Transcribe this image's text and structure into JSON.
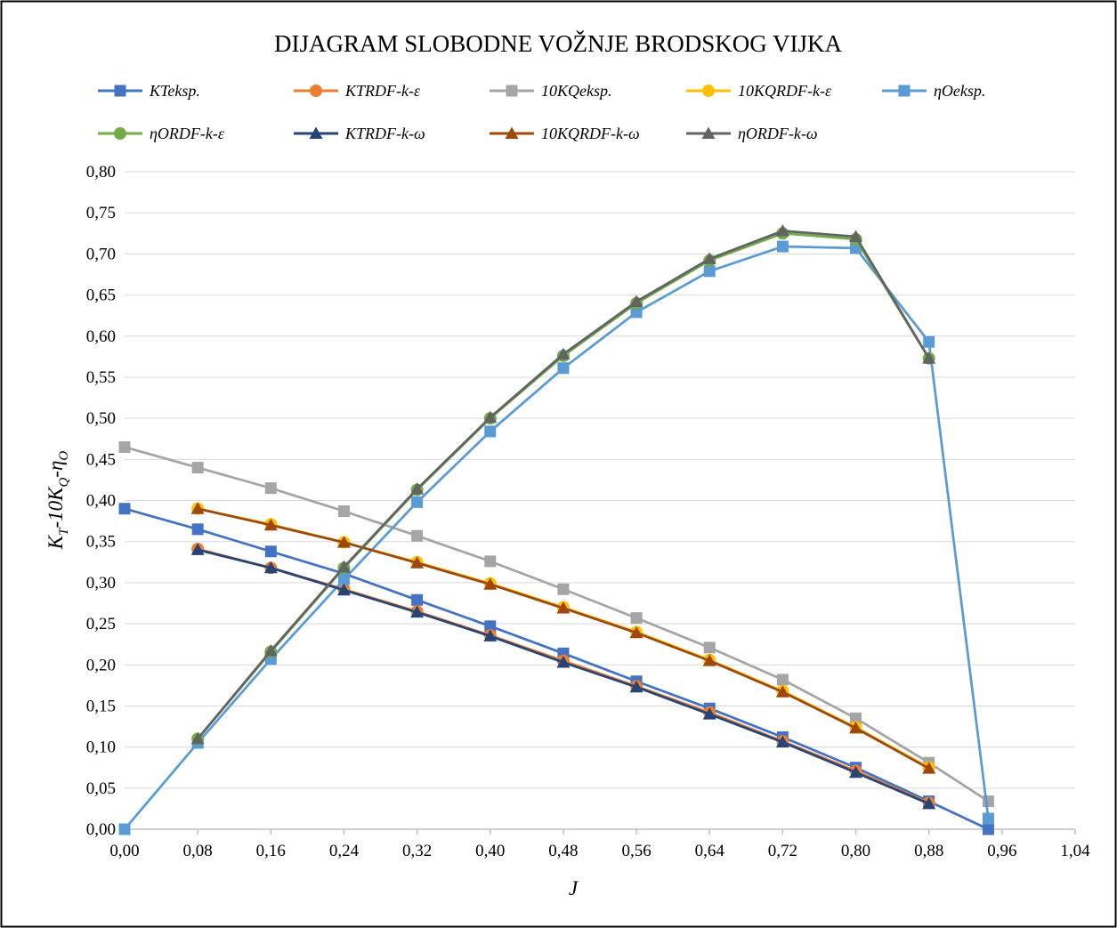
{
  "chart_data": {
    "type": "line",
    "title": "DIJAGRAM SLOBODNE VOŽNJE BRODSKOG VIJKA",
    "xlabel": "J",
    "ylabel": "KT-10KQ-ηO",
    "ylabel_parts": {
      "k1": "K",
      "s1": "T",
      "dash1": "-10K",
      "s2": "Q",
      "dash2": "-η",
      "s3": "O"
    },
    "xlim": [
      0,
      1.04
    ],
    "ylim": [
      0,
      0.8
    ],
    "x_ticks": [
      "0,00",
      "0,08",
      "0,16",
      "0,24",
      "0,32",
      "0,40",
      "0,48",
      "0,56",
      "0,64",
      "0,72",
      "0,80",
      "0,88",
      "0,96",
      "1,04"
    ],
    "y_ticks": [
      "0,00",
      "0,05",
      "0,10",
      "0,15",
      "0,20",
      "0,25",
      "0,30",
      "0,35",
      "0,40",
      "0,45",
      "0,50",
      "0,55",
      "0,60",
      "0,65",
      "0,70",
      "0,75",
      "0,80"
    ],
    "grid": {
      "horizontal": true,
      "vertical": false
    },
    "legend_position": "top",
    "series": [
      {
        "name": "KTeksp.",
        "color": "#4472C4",
        "marker": "square",
        "x": [
          0,
          0.08,
          0.16,
          0.24,
          0.32,
          0.4,
          0.48,
          0.56,
          0.64,
          0.72,
          0.8,
          0.88,
          0.945
        ],
        "y": [
          0.39,
          0.365,
          0.338,
          0.311,
          0.279,
          0.247,
          0.214,
          0.18,
          0.147,
          0.112,
          0.075,
          0.034,
          0.0
        ]
      },
      {
        "name": "KTRDF-k-ε",
        "color": "#ED7D31",
        "marker": "circle",
        "x": [
          0.08,
          0.16,
          0.24,
          0.32,
          0.4,
          0.48,
          0.56,
          0.64,
          0.72,
          0.8,
          0.88
        ],
        "y": [
          0.341,
          0.318,
          0.292,
          0.265,
          0.236,
          0.205,
          0.174,
          0.142,
          0.107,
          0.071,
          0.032
        ]
      },
      {
        "name": "10KQeksp.",
        "color": "#A5A5A5",
        "marker": "square",
        "x": [
          0,
          0.08,
          0.16,
          0.24,
          0.32,
          0.4,
          0.48,
          0.56,
          0.64,
          0.72,
          0.8,
          0.88,
          0.945
        ],
        "y": [
          0.465,
          0.44,
          0.415,
          0.387,
          0.357,
          0.326,
          0.292,
          0.257,
          0.221,
          0.182,
          0.135,
          0.081,
          0.034
        ]
      },
      {
        "name": "10KQRDF-k-ε",
        "color": "#FFC000",
        "marker": "circle",
        "x": [
          0.08,
          0.16,
          0.24,
          0.32,
          0.4,
          0.48,
          0.56,
          0.64,
          0.72,
          0.8,
          0.88
        ],
        "y": [
          0.39,
          0.371,
          0.349,
          0.325,
          0.299,
          0.27,
          0.24,
          0.206,
          0.168,
          0.124,
          0.075
        ]
      },
      {
        "name": "ηOeksp.",
        "color": "#5B9BD5",
        "marker": "square",
        "x": [
          0,
          0.08,
          0.16,
          0.24,
          0.32,
          0.4,
          0.48,
          0.56,
          0.64,
          0.72,
          0.8,
          0.88,
          0.945
        ],
        "y": [
          0.0,
          0.105,
          0.207,
          0.304,
          0.398,
          0.484,
          0.561,
          0.629,
          0.679,
          0.709,
          0.707,
          0.593,
          0.013
        ]
      },
      {
        "name": "ηORDF-k-ε",
        "color": "#70AD47",
        "marker": "circle",
        "x": [
          0.08,
          0.16,
          0.24,
          0.32,
          0.4,
          0.48,
          0.56,
          0.64,
          0.72,
          0.8,
          0.88
        ],
        "y": [
          0.11,
          0.216,
          0.318,
          0.413,
          0.5,
          0.576,
          0.64,
          0.692,
          0.725,
          0.718,
          0.573
        ]
      },
      {
        "name": "KTRDF-k-ω",
        "color": "#264478",
        "marker": "triangle",
        "x": [
          0.08,
          0.16,
          0.24,
          0.32,
          0.4,
          0.48,
          0.56,
          0.64,
          0.72,
          0.8,
          0.88
        ],
        "y": [
          0.34,
          0.318,
          0.291,
          0.264,
          0.235,
          0.203,
          0.173,
          0.14,
          0.106,
          0.069,
          0.031
        ]
      },
      {
        "name": "10KQRDF-k-ω",
        "color": "#9E480E",
        "marker": "triangle",
        "x": [
          0.08,
          0.16,
          0.24,
          0.32,
          0.4,
          0.48,
          0.56,
          0.64,
          0.72,
          0.8,
          0.88
        ],
        "y": [
          0.39,
          0.37,
          0.349,
          0.324,
          0.298,
          0.269,
          0.239,
          0.205,
          0.167,
          0.123,
          0.074
        ]
      },
      {
        "name": "ηORDF-k-ω",
        "color": "#636363",
        "marker": "triangle",
        "x": [
          0.08,
          0.16,
          0.24,
          0.32,
          0.4,
          0.48,
          0.56,
          0.64,
          0.72,
          0.8,
          0.88
        ],
        "y": [
          0.11,
          0.217,
          0.319,
          0.414,
          0.501,
          0.578,
          0.642,
          0.694,
          0.728,
          0.721,
          0.573
        ]
      }
    ]
  }
}
